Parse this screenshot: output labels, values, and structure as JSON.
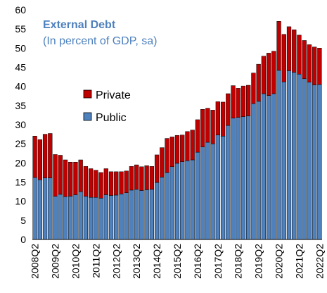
{
  "chart_data": {
    "type": "bar",
    "stacked": true,
    "title": "External Debt",
    "subtitle": "(In percent of GDP, sa)",
    "title_color": "#4f81bd",
    "subtitle_color": "#4f81bd",
    "ylim": [
      0,
      60
    ],
    "yticks": [
      "0",
      "5",
      "10",
      "15",
      "20",
      "25",
      "30",
      "35",
      "40",
      "45",
      "50",
      "55",
      "60"
    ],
    "grid": false,
    "legend_position": "center-left",
    "x_tick_labels": [
      "2008Q2",
      "2009Q2",
      "2010Q2",
      "2011Q2",
      "2012Q2",
      "2013Q2",
      "2014Q2",
      "2015Q2",
      "2016Q2",
      "2017Q2",
      "2018Q2",
      "2019Q2",
      "2020Q2",
      "2021Q2",
      "2022Q2"
    ],
    "categories": [
      "2008Q2",
      "2008Q3",
      "2008Q4",
      "2009Q1",
      "2009Q2",
      "2009Q3",
      "2009Q4",
      "2010Q1",
      "2010Q2",
      "2010Q3",
      "2010Q4",
      "2011Q1",
      "2011Q2",
      "2011Q3",
      "2011Q4",
      "2012Q1",
      "2012Q2",
      "2012Q3",
      "2012Q4",
      "2013Q1",
      "2013Q2",
      "2013Q3",
      "2013Q4",
      "2014Q1",
      "2014Q2",
      "2014Q3",
      "2014Q4",
      "2015Q1",
      "2015Q2",
      "2015Q3",
      "2015Q4",
      "2016Q1",
      "2016Q2",
      "2016Q3",
      "2016Q4",
      "2017Q1",
      "2017Q2",
      "2017Q3",
      "2017Q4",
      "2018Q1",
      "2018Q2",
      "2018Q3",
      "2018Q4",
      "2019Q1",
      "2019Q2",
      "2019Q3",
      "2019Q4",
      "2020Q1",
      "2020Q2",
      "2020Q3",
      "2020Q4",
      "2021Q1",
      "2021Q2",
      "2021Q3",
      "2021Q4",
      "2022Q1",
      "2022Q2"
    ],
    "series": [
      {
        "name": "Public",
        "color": "#4f81bd",
        "values": [
          16.2,
          15.6,
          16.1,
          16.1,
          11.3,
          11.8,
          11.2,
          11.3,
          11.7,
          12.5,
          11.3,
          11.0,
          11.0,
          10.8,
          11.7,
          11.5,
          11.6,
          11.9,
          12.2,
          12.9,
          13.1,
          12.8,
          13.0,
          13.1,
          14.9,
          16.3,
          17.5,
          19.0,
          19.9,
          20.3,
          20.6,
          20.8,
          22.8,
          24.2,
          25.4,
          25.0,
          27.3,
          27.0,
          29.8,
          31.7,
          31.9,
          32.1,
          32.3,
          35.5,
          36.1,
          38.1,
          37.6,
          38.1,
          44.2,
          41.2,
          44.1,
          43.7,
          43.2,
          42.0,
          41.1,
          40.4,
          40.5
        ]
      },
      {
        "name": "Private",
        "color": "#c00000",
        "values": [
          10.8,
          10.5,
          11.4,
          11.6,
          10.9,
          10.2,
          9.6,
          8.9,
          8.5,
          8.3,
          7.8,
          7.5,
          7.1,
          6.7,
          6.8,
          6.2,
          6.1,
          5.8,
          5.7,
          6.2,
          6.4,
          6.2,
          6.3,
          6.0,
          7.2,
          7.7,
          8.9,
          7.8,
          7.3,
          7.0,
          7.6,
          7.8,
          8.5,
          9.8,
          8.9,
          8.8,
          8.7,
          8.9,
          8.3,
          8.5,
          7.6,
          8.0,
          8.0,
          8.0,
          9.7,
          9.8,
          11.1,
          11.1,
          12.8,
          12.4,
          11.5,
          11.1,
          10.2,
          10.0,
          9.8,
          9.9,
          9.5
        ]
      }
    ]
  }
}
